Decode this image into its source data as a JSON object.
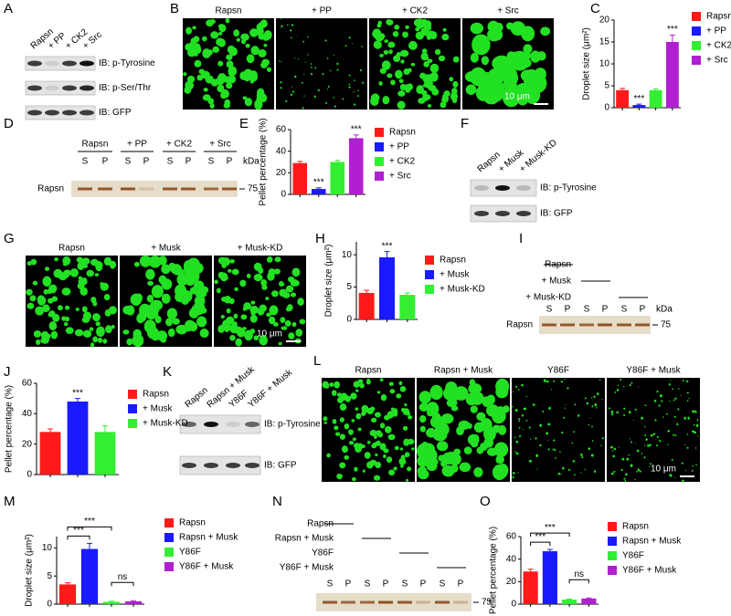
{
  "panel_letters": [
    "A",
    "B",
    "C",
    "D",
    "E",
    "F",
    "G",
    "H",
    "I",
    "J",
    "K",
    "L",
    "M",
    "N",
    "O"
  ],
  "panel_a": {
    "lanes": [
      "Rapsn",
      "+ PP",
      "+ CK2",
      "+ Src"
    ],
    "rows": [
      "IB: p-Tyrosine",
      "IB: p-Ser/Thr",
      "IB: GFP"
    ]
  },
  "panel_b": {
    "labels": [
      "Rapsn",
      "+ PP",
      "+ CK2",
      "+ Src"
    ],
    "scale": "10 μm"
  },
  "panel_d": {
    "groups": [
      "Rapsn",
      "+ PP",
      "+ CK2",
      "+ Src"
    ],
    "lanes": [
      "S",
      "P",
      "S",
      "P",
      "S",
      "P",
      "S",
      "P"
    ],
    "unit": "kDa",
    "marker": "75",
    "row": "Rapsn"
  },
  "panel_f": {
    "lanes": [
      "Rapsn",
      "+ Musk",
      "+ Musk-KD"
    ],
    "rows": [
      "IB: p-Tyrosine",
      "IB: GFP"
    ]
  },
  "panel_g": {
    "labels": [
      "Rapsn",
      "+ Musk",
      "+ Musk-KD"
    ],
    "scale": "10 μm"
  },
  "panel_i": {
    "conditions": [
      "Rapsn",
      "+ Musk",
      "+ Musk-KD"
    ],
    "lanes": [
      "S",
      "P",
      "S",
      "P",
      "S",
      "P"
    ],
    "unit": "kDa",
    "marker": "75",
    "row": "Rapsn"
  },
  "panel_k": {
    "lanes": [
      "Rapsn",
      "Rapsn + Musk",
      "Y86F",
      "Y86F + Musk"
    ],
    "rows": [
      "IB: p-Tyrosine",
      "IB: GFP"
    ]
  },
  "panel_l": {
    "labels": [
      "Rapsn",
      "Rapsn + Musk",
      "Y86F",
      "Y86F + Musk"
    ],
    "scale": "10 μm"
  },
  "panel_n": {
    "conditions": [
      "Rapsn",
      "Rapsn + Musk",
      "Y86F",
      "Y86F + Musk"
    ],
    "lanes": [
      "S",
      "P",
      "S",
      "P",
      "S",
      "P",
      "S",
      "P"
    ],
    "marker": "75"
  },
  "chart_data": [
    {
      "type": "bar",
      "y_label": "Droplet size (μm²)",
      "ylim": [
        0,
        20
      ],
      "yticks": [
        0,
        5,
        10,
        15,
        20
      ],
      "series": [
        {
          "name": "Rapsn",
          "color": "#ff1a1a",
          "values": [
            4.0
          ],
          "errors": [
            0.4
          ]
        },
        {
          "name": "+ PP",
          "color": "#1a1aff",
          "values": [
            0.6
          ],
          "errors": [
            0.2
          ],
          "sig": "***"
        },
        {
          "name": "+ CK2",
          "color": "#33ee33",
          "values": [
            4.0
          ],
          "errors": [
            0.3
          ]
        },
        {
          "name": "+ Src",
          "color": "#b020d0",
          "values": [
            15.0
          ],
          "errors": [
            1.6
          ],
          "sig": "***"
        }
      ]
    },
    {
      "type": "bar",
      "y_label": "Pellet percentage (%)",
      "ylim": [
        0,
        60
      ],
      "yticks": [
        0,
        20,
        40,
        60
      ],
      "series": [
        {
          "name": "Rapsn",
          "color": "#ff1a1a",
          "values": [
            29
          ],
          "errors": [
            1.5
          ]
        },
        {
          "name": "+ PP",
          "color": "#1a1aff",
          "values": [
            5
          ],
          "errors": [
            1
          ],
          "sig": "***"
        },
        {
          "name": "+ CK2",
          "color": "#33ee33",
          "values": [
            30
          ],
          "errors": [
            1.5
          ]
        },
        {
          "name": "+ Src",
          "color": "#b020d0",
          "values": [
            52
          ],
          "errors": [
            3
          ],
          "sig": "***"
        }
      ]
    },
    {
      "type": "bar",
      "y_label": "Droplet size (μm²)",
      "ylim": [
        0,
        12
      ],
      "yticks": [
        0,
        5,
        10
      ],
      "series": [
        {
          "name": "Rapsn",
          "color": "#ff1a1a",
          "values": [
            4.1
          ],
          "errors": [
            0.4
          ]
        },
        {
          "name": "+ Musk",
          "color": "#1a1aff",
          "values": [
            9.6
          ],
          "errors": [
            0.9
          ],
          "sig": "***"
        },
        {
          "name": "+ Musk-KD",
          "color": "#33ee33",
          "values": [
            3.8
          ],
          "errors": [
            0.3
          ]
        }
      ]
    },
    {
      "type": "bar",
      "y_label": "Pellet percentage (%)",
      "ylim": [
        0,
        60
      ],
      "yticks": [
        0,
        20,
        40,
        60
      ],
      "series": [
        {
          "name": "Rapsn",
          "color": "#ff1a1a",
          "values": [
            28
          ],
          "errors": [
            2
          ]
        },
        {
          "name": "+ Musk",
          "color": "#1a1aff",
          "values": [
            48
          ],
          "errors": [
            2
          ],
          "sig": "***"
        },
        {
          "name": "+ Musk-KD",
          "color": "#33ee33",
          "values": [
            28
          ],
          "errors": [
            4
          ]
        }
      ]
    },
    {
      "type": "bar",
      "y_label": "Droplet size (μm²)",
      "ylim": [
        0,
        12
      ],
      "yticks": [
        0,
        5,
        10
      ],
      "series": [
        {
          "name": "Rapsn",
          "color": "#ff1a1a",
          "values": [
            3.5
          ],
          "errors": [
            0.3
          ]
        },
        {
          "name": "Rapsn + Musk",
          "color": "#1a1aff",
          "values": [
            9.8
          ],
          "errors": [
            1.0
          ]
        },
        {
          "name": "Y86F",
          "color": "#33ee33",
          "values": [
            0.4
          ],
          "errors": [
            0.1
          ]
        },
        {
          "name": "Y86F + Musk",
          "color": "#b020d0",
          "values": [
            0.5
          ],
          "errors": [
            0.1
          ]
        }
      ],
      "comparisons": [
        {
          "bars": [
            0,
            1
          ],
          "label": "***"
        },
        {
          "bars": [
            0,
            2
          ],
          "label": "***"
        },
        {
          "bars": [
            2,
            3
          ],
          "label": "ns"
        }
      ]
    },
    {
      "type": "bar",
      "y_label": "Pellet percentage (%)",
      "ylim": [
        0,
        60
      ],
      "yticks": [
        0,
        20,
        40,
        60
      ],
      "series": [
        {
          "name": "Rapsn",
          "color": "#ff1a1a",
          "values": [
            29
          ],
          "errors": [
            2
          ]
        },
        {
          "name": "Rapsn + Musk",
          "color": "#1a1aff",
          "values": [
            47
          ],
          "errors": [
            1.5
          ]
        },
        {
          "name": "Y86F",
          "color": "#33ee33",
          "values": [
            4
          ],
          "errors": [
            0.5
          ]
        },
        {
          "name": "Y86F + Musk",
          "color": "#b020d0",
          "values": [
            5
          ],
          "errors": [
            0.5
          ]
        }
      ],
      "comparisons": [
        {
          "bars": [
            0,
            1
          ],
          "label": "***"
        },
        {
          "bars": [
            0,
            2
          ],
          "label": "***"
        },
        {
          "bars": [
            2,
            3
          ],
          "label": "ns"
        }
      ]
    }
  ]
}
